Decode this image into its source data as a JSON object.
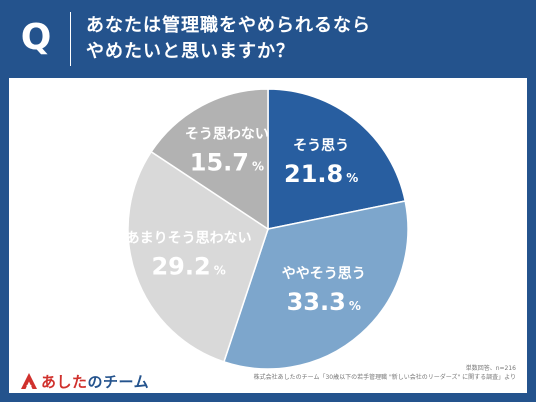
{
  "header": {
    "q_label": "Q",
    "question_line1": "あなたは管理職をやめられるなら",
    "question_line2": "やめたいと思いますか？"
  },
  "chart_data": {
    "type": "pie",
    "title": "あなたは管理職をやめられるならやめたいと思いますか？",
    "unit": "%",
    "slices": [
      {
        "label": "そう思う",
        "value": 21.8,
        "color": "#285ea0",
        "text_color": "#ffffff"
      },
      {
        "label": "ややそう思う",
        "value": 33.3,
        "color": "#7da6cc",
        "text_color": "#ffffff"
      },
      {
        "label": "あまりそう思わない",
        "value": 29.2,
        "color": "#d9d9d9",
        "text_color": "#ffffff"
      },
      {
        "label": "そう思わない",
        "value": 15.7,
        "color": "#b2b2b2",
        "text_color": "#ffffff"
      }
    ],
    "start_angle_deg": 0,
    "direction": "clockwise"
  },
  "footer": {
    "logo_text_main": "あした",
    "logo_text_sub": "のチーム",
    "note_line1": "単数回答、n=216",
    "note_line2": "株式会社あしたのチーム「30歳以下の若手管理職 \"新しい会社のリーダーズ\" に関する調査」より"
  },
  "colors": {
    "brand_blue": "#24538d",
    "brand_red": "#d0312d"
  }
}
